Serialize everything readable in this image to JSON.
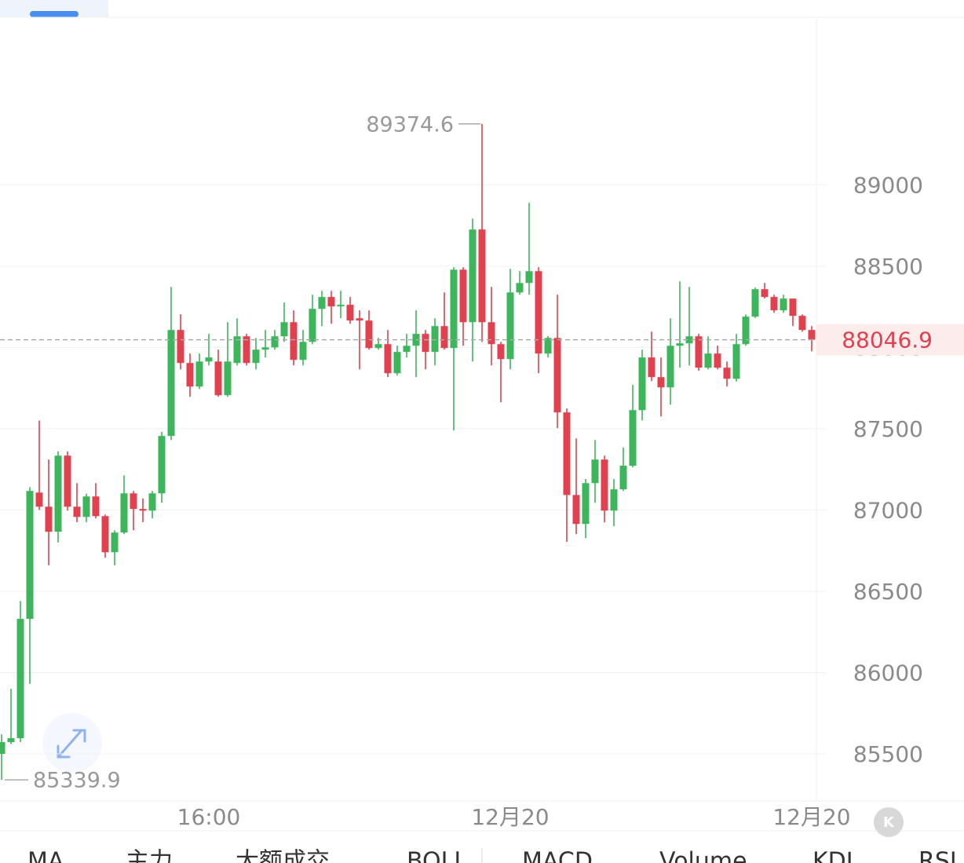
{
  "chart_data": {
    "type": "candlestick",
    "categories": [
      null,
      null,
      null,
      null,
      null,
      null,
      null,
      null,
      null,
      null,
      null,
      null,
      null,
      null,
      null,
      null,
      null,
      null,
      null,
      null,
      null,
      null,
      "16:00",
      null,
      null,
      null,
      null,
      null,
      null,
      null,
      null,
      null,
      null,
      null,
      null,
      null,
      null,
      null,
      null,
      null,
      null,
      null,
      null,
      null,
      null,
      null,
      null,
      null,
      null,
      null,
      null,
      null,
      null,
      null,
      "12月20",
      null,
      null,
      null,
      null,
      null,
      null,
      null,
      null,
      null,
      null,
      null,
      null,
      null,
      null,
      null,
      null,
      null,
      null,
      null,
      null,
      null,
      null,
      null,
      null,
      null,
      null,
      null,
      null,
      null,
      null,
      null,
      "12月20"
    ],
    "open": [
      85500,
      85572,
      85596,
      86330,
      87107,
      87020,
      86866,
      87334,
      87020,
      86957,
      87083,
      86962,
      86740,
      86861,
      87102,
      87006,
      86996,
      87102,
      87455,
      88107,
      87904,
      87759,
      87913,
      87913,
      87706,
      87904,
      88068,
      87904,
      87986,
      88000,
      88068,
      88155,
      87923,
      88034,
      88237,
      88310,
      88252,
      88262,
      88179,
      88165,
      87996,
      88020,
      87841,
      87972,
      88010,
      88083,
      87972,
      88131,
      87996,
      88478,
      88155,
      88725,
      88155,
      88020,
      87928,
      88338,
      88396,
      88469,
      87962,
      88058,
      87600,
      87092,
      86914,
      87165,
      87310,
      86996,
      87127,
      87272,
      87614,
      87938,
      87817,
      87754,
      88010,
      88025,
      88068,
      87875,
      87962,
      87875,
      87807,
      88020,
      88189,
      88358,
      88310,
      88228,
      88300,
      88194,
      88107
    ],
    "high": [
      85620,
      85900,
      86440,
      87140,
      87550,
      87310,
      87360,
      87360,
      87165,
      87100,
      87165,
      86972,
      86875,
      87213,
      87117,
      87070,
      87117,
      87480,
      88372,
      88203,
      87962,
      87962,
      88083,
      87986,
      88155,
      88179,
      88083,
      88058,
      88107,
      88107,
      88276,
      88228,
      88107,
      88324,
      88348,
      88348,
      88348,
      88310,
      88228,
      88228,
      88058,
      88107,
      88010,
      88083,
      88228,
      88107,
      88179,
      88338,
      88493,
      88493,
      88792,
      89374.6,
      88372,
      88034,
      88483,
      88469,
      88889,
      88493,
      88070,
      88324,
      87624,
      87440,
      87190,
      87430,
      87334,
      87190,
      87383,
      87769,
      87986,
      88097,
      87938,
      88179,
      88406,
      88372,
      88083,
      88068,
      88010,
      87913,
      88083,
      88203,
      88368,
      88396,
      88324,
      88324,
      88300,
      88203,
      88131
    ],
    "low": [
      85339.9,
      85560,
      85572,
      85930,
      87000,
      86660,
      86800,
      86996,
      86925,
      86925,
      86948,
      86706,
      86660,
      86851,
      86875,
      86925,
      86948,
      87044,
      87430,
      87865,
      87696,
      87744,
      87889,
      87696,
      87696,
      87889,
      87889,
      87865,
      87938,
      87986,
      88034,
      87889,
      87889,
      88020,
      88131,
      88145,
      88180,
      88145,
      87865,
      87986,
      87986,
      87817,
      87827,
      87938,
      87817,
      87865,
      87889,
      87986,
      87489,
      88010,
      87913,
      88034,
      87889,
      87662,
      87865,
      88324,
      88324,
      87841,
      87938,
      87503,
      86803,
      86851,
      86827,
      87044,
      86924,
      86900,
      87117,
      87262,
      87551,
      87793,
      87575,
      87648,
      87875,
      87889,
      87856,
      87865,
      87865,
      87759,
      87790,
      88010,
      88180,
      88300,
      88213,
      88213,
      88131,
      88097,
      87976
    ],
    "close": [
      85572,
      85596,
      86330,
      87117,
      87020,
      86866,
      87334,
      87020,
      86957,
      87083,
      86962,
      86740,
      86861,
      87102,
      87006,
      86996,
      87102,
      87455,
      88107,
      87904,
      87759,
      87913,
      87938,
      87706,
      87913,
      88068,
      87904,
      87986,
      88000,
      88068,
      88155,
      87923,
      88034,
      88237,
      88310,
      88252,
      88262,
      88165,
      88165,
      87996,
      88020,
      87841,
      87972,
      88010,
      88083,
      87972,
      88131,
      87996,
      88478,
      88155,
      88725,
      88155,
      88020,
      87928,
      88338,
      88396,
      88469,
      87962,
      88058,
      87600,
      87092,
      86914,
      87165,
      87310,
      86996,
      87127,
      87272,
      87614,
      87938,
      87817,
      87754,
      88010,
      88025,
      88068,
      87875,
      87962,
      87875,
      87807,
      88020,
      88189,
      88358,
      88310,
      88228,
      88300,
      88194,
      88107,
      88046.9
    ],
    "up_color": "#3db65b",
    "down_color": "#e0414f",
    "ylim": [
      85210,
      90040
    ],
    "yticks": [
      85500,
      86000,
      86500,
      87000,
      87500,
      88000,
      88500,
      89000
    ],
    "grid": true,
    "k_button": "K",
    "tabs": [
      "MA",
      "主力",
      "大额成交",
      "BOLL",
      "MACD",
      "Volume",
      "KDJ",
      "RSI"
    ]
  }
}
